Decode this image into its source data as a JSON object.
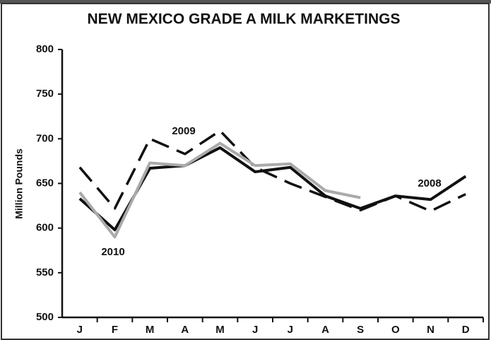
{
  "chart_data": {
    "type": "line",
    "title": "NEW MEXICO GRADE A MILK MARKETINGS",
    "y_label": "Million Pounds",
    "categories": [
      "J",
      "F",
      "M",
      "A",
      "M",
      "J",
      "J",
      "A",
      "S",
      "O",
      "N",
      "D"
    ],
    "series": [
      {
        "name": "2008",
        "color": "#111111",
        "dashed": false,
        "values": [
          633,
          598,
          667,
          670,
          690,
          663,
          668,
          636,
          622,
          636,
          632,
          658
        ]
      },
      {
        "name": "2009",
        "color": "#111111",
        "dashed": true,
        "values": [
          668,
          622,
          700,
          683,
          709,
          668,
          650,
          635,
          620,
          636,
          619,
          638
        ]
      },
      {
        "name": "2010",
        "color": "#aaaaaa",
        "dashed": false,
        "values": [
          640,
          590,
          673,
          670,
          695,
          670,
          672,
          642,
          634,
          null,
          null,
          null
        ]
      }
    ],
    "ylim": [
      500,
      800
    ],
    "yticks": [
      500,
      550,
      600,
      650,
      700,
      750,
      800
    ]
  }
}
